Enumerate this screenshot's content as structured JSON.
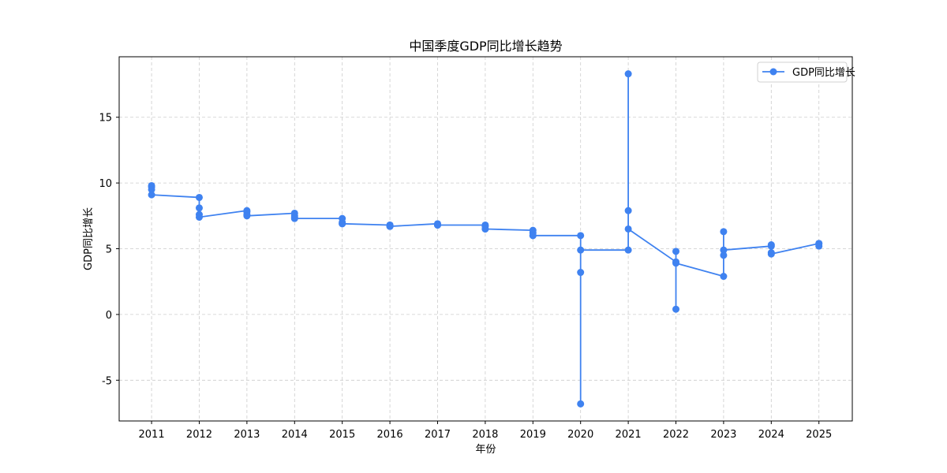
{
  "chart_data": {
    "type": "line",
    "title": "中国季度GDP同比增长趋势",
    "xlabel": "年份",
    "ylabel": "GDP同比增长",
    "xlim": [
      2010.32,
      2025.7
    ],
    "ylim": [
      -8.1,
      19.6
    ],
    "xticks": [
      2011,
      2012,
      2013,
      2014,
      2015,
      2016,
      2017,
      2018,
      2019,
      2020,
      2021,
      2022,
      2023,
      2024,
      2025
    ],
    "yticks": [
      -5,
      0,
      5,
      10,
      15
    ],
    "ytick_labels": [
      "-5",
      "0",
      "5",
      "10",
      "15"
    ],
    "grid": true,
    "legend_position": "top-right",
    "series": [
      {
        "name": "GDP同比增长",
        "color": "#3f82f0",
        "marker": "circle",
        "points": [
          [
            2011,
            9.8
          ],
          [
            2011,
            9.7
          ],
          [
            2011,
            9.5
          ],
          [
            2011,
            9.1
          ],
          [
            2012,
            8.9
          ],
          [
            2012,
            8.1
          ],
          [
            2012,
            7.6
          ],
          [
            2012,
            7.4
          ],
          [
            2013,
            7.9
          ],
          [
            2013,
            7.8
          ],
          [
            2013,
            7.6
          ],
          [
            2013,
            7.5
          ],
          [
            2014,
            7.7
          ],
          [
            2014,
            7.5
          ],
          [
            2014,
            7.4
          ],
          [
            2014,
            7.3
          ],
          [
            2015,
            7.3
          ],
          [
            2015,
            7.0
          ],
          [
            2015,
            6.9
          ],
          [
            2015,
            6.9
          ],
          [
            2016,
            6.8
          ],
          [
            2016,
            6.8
          ],
          [
            2016,
            6.7
          ],
          [
            2016,
            6.7
          ],
          [
            2017,
            6.9
          ],
          [
            2017,
            6.8
          ],
          [
            2017,
            6.8
          ],
          [
            2017,
            6.8
          ],
          [
            2018,
            6.8
          ],
          [
            2018,
            6.7
          ],
          [
            2018,
            6.5
          ],
          [
            2018,
            6.5
          ],
          [
            2019,
            6.4
          ],
          [
            2019,
            6.2
          ],
          [
            2019,
            6.0
          ],
          [
            2019,
            6.0
          ],
          [
            2020,
            6.0
          ],
          [
            2020,
            -6.8
          ],
          [
            2020,
            3.2
          ],
          [
            2020,
            4.9
          ],
          [
            2021,
            4.9
          ],
          [
            2021,
            18.3
          ],
          [
            2021,
            7.9
          ],
          [
            2021,
            6.5
          ],
          [
            2022,
            4.0
          ],
          [
            2022,
            4.8
          ],
          [
            2022,
            0.4
          ],
          [
            2022,
            3.9
          ],
          [
            2023,
            2.9
          ],
          [
            2023,
            4.5
          ],
          [
            2023,
            6.3
          ],
          [
            2023,
            4.9
          ],
          [
            2024,
            5.2
          ],
          [
            2024,
            5.3
          ],
          [
            2024,
            4.7
          ],
          [
            2024,
            4.6
          ],
          [
            2025,
            5.4
          ],
          [
            2025,
            5.4
          ],
          [
            2025,
            5.2
          ]
        ]
      }
    ]
  }
}
